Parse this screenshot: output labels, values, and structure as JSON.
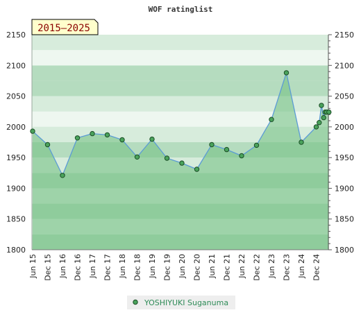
{
  "chart_data": {
    "type": "line",
    "title": "WOF ratinglist",
    "period_label": "2015–2025",
    "ylim": [
      1800,
      2150
    ],
    "y_ticks": [
      1800,
      1850,
      1900,
      1950,
      2000,
      2050,
      2100,
      2150
    ],
    "x_tick_labels": [
      "Jun 15",
      "Dec 15",
      "Jun 16",
      "Dec 16",
      "Jun 17",
      "Dec 17",
      "Jun 18",
      "Dec 18",
      "Jun 19",
      "Dec 19",
      "Jun 20",
      "Dec 20",
      "Jun 21",
      "Dec 21",
      "Jun 22",
      "Dec 22",
      "Jun 23",
      "Dec 23",
      "Jun 24",
      "Dec 24"
    ],
    "legend_position": "bottom-center",
    "grid": true,
    "colors": {
      "line": "#5b9bd5",
      "fill": "#6fbf80",
      "marker": "#4aa35c",
      "band_dark": "#b5dcbf",
      "band_light": "#eef7f0",
      "band_mid": "#d7ecdc"
    },
    "series": [
      {
        "name": "YOSHIYUKI Suganuma",
        "x": [
          0,
          1,
          2,
          3,
          4,
          5,
          6,
          7,
          8,
          9,
          10,
          11,
          12,
          13,
          14,
          15,
          16,
          17,
          18,
          19,
          19.2,
          19.35,
          19.5,
          19.6,
          19.7,
          19.85
        ],
        "values": [
          1993,
          1971,
          1921,
          1982,
          1989,
          1987,
          1979,
          1951,
          1980,
          1949,
          1941,
          1931,
          1971,
          1963,
          1953,
          1970,
          2012,
          2088,
          1975,
          2000,
          2007,
          2035,
          2015,
          2024,
          2024,
          2024
        ]
      }
    ]
  }
}
